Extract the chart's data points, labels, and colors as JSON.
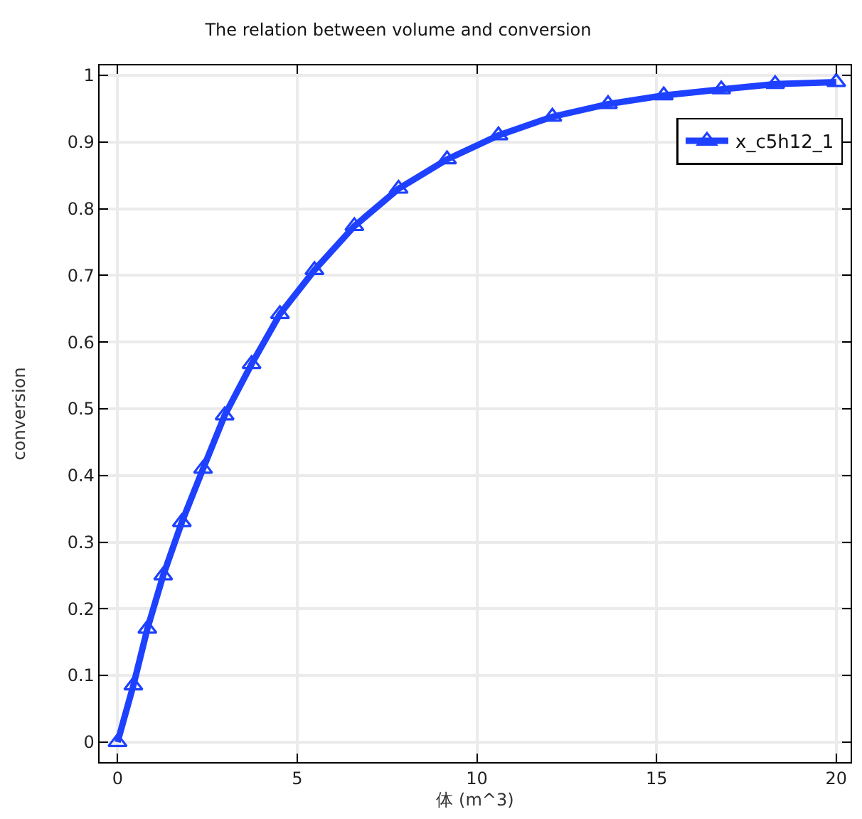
{
  "chart_data": {
    "type": "line",
    "title": "The relation between volume and conversion",
    "xlabel": "体 (m^3)",
    "ylabel": "conversion",
    "x": [
      0,
      0.44,
      0.83,
      1.27,
      1.79,
      2.38,
      2.98,
      3.73,
      4.52,
      5.48,
      6.59,
      7.82,
      9.17,
      10.6,
      12.1,
      13.65,
      15.2,
      16.8,
      18.3,
      20
    ],
    "series": [
      {
        "name": "x_c5h12_1",
        "color": "#1e40ff",
        "values": [
          0,
          0.085,
          0.17,
          0.25,
          0.33,
          0.41,
          0.49,
          0.567,
          0.642,
          0.708,
          0.774,
          0.83,
          0.874,
          0.91,
          0.938,
          0.957,
          0.97,
          0.979,
          0.987,
          0.99
        ]
      }
    ],
    "xlim": [
      -0.5,
      20.4
    ],
    "ylim": [
      -0.03,
      1.015
    ],
    "xticks": [
      0,
      5,
      10,
      15,
      20
    ],
    "yticks": [
      0,
      0.1,
      0.2,
      0.3,
      0.4,
      0.5,
      0.6,
      0.7,
      0.8,
      0.9,
      1
    ],
    "grid": true,
    "legend": "top right",
    "marker": "triangle",
    "line_style": "solid"
  }
}
